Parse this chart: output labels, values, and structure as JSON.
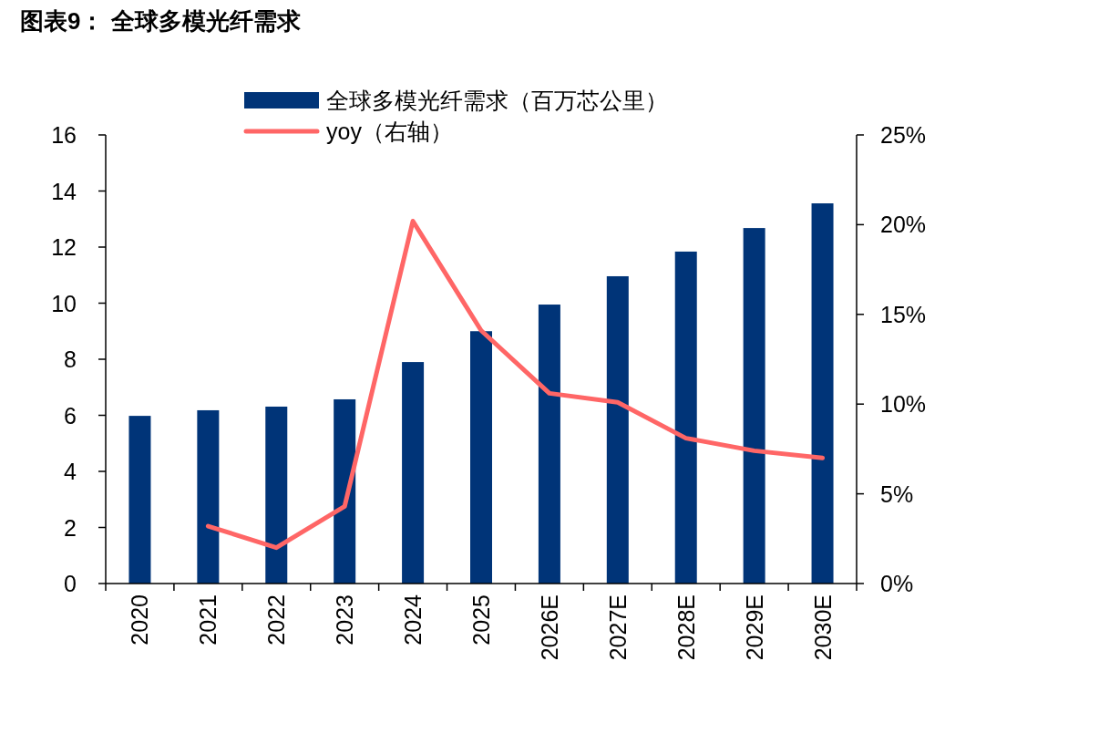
{
  "chart_data": {
    "type": "bar",
    "title": "图表9：  全球多模光纤需求",
    "categories": [
      "2020",
      "2021",
      "2022",
      "2023",
      "2024",
      "2025",
      "2026E",
      "2027E",
      "2028E",
      "2029E",
      "2030E"
    ],
    "series": [
      {
        "name": "全球多模光纤需求（百万芯公里）",
        "color": "#003478",
        "values": [
          5.98,
          6.18,
          6.31,
          6.57,
          7.9,
          9.0,
          9.95,
          10.96,
          11.84,
          12.68,
          13.56
        ]
      },
      {
        "name": "yoy（右轴）",
        "type": "line",
        "axis": "y2",
        "color": "#ff6666",
        "values": [
          null,
          3.2,
          2.0,
          4.3,
          20.2,
          14.1,
          10.6,
          10.1,
          8.1,
          7.4,
          7.0
        ]
      }
    ],
    "ylim": [
      0,
      16
    ],
    "yticks": [
      0,
      2,
      4,
      6,
      8,
      10,
      12,
      14,
      16
    ],
    "y2lim": [
      0,
      25
    ],
    "y2ticks": [
      {
        "value": 0,
        "label": "0%"
      },
      {
        "value": 5,
        "label": "5%"
      },
      {
        "value": 10,
        "label": "10%"
      },
      {
        "value": 15,
        "label": "15%"
      },
      {
        "value": 20,
        "label": "20%"
      },
      {
        "value": 25,
        "label": "25%"
      }
    ],
    "legend": "top",
    "grid": false
  }
}
